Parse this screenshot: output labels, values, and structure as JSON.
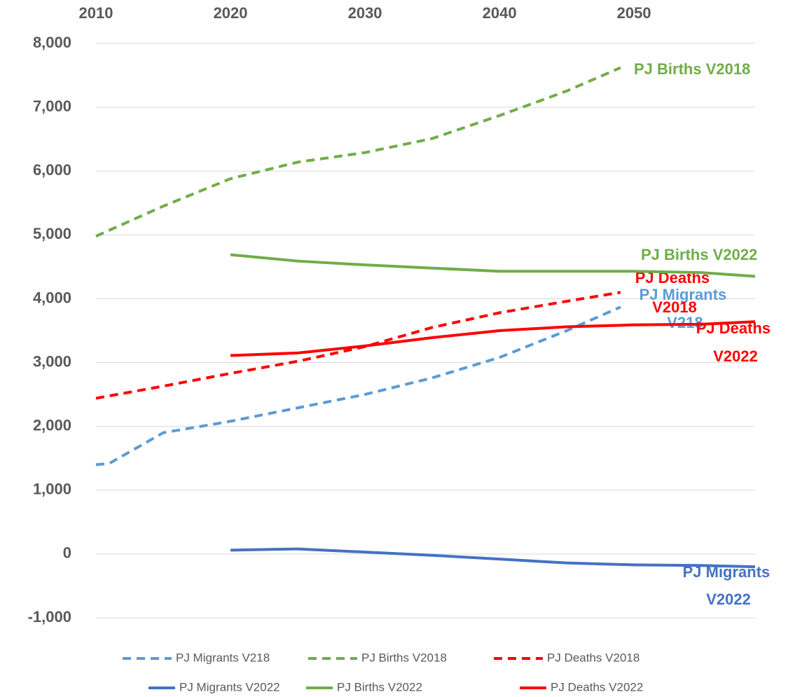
{
  "chart_data": {
    "type": "line",
    "series": [
      {
        "name": "PJ Migrants V218",
        "color": "#5b9bd5",
        "dashed": true,
        "x": [
          2010,
          2011,
          2015,
          2020,
          2025,
          2030,
          2035,
          2040,
          2045,
          2049
        ],
        "values": [
          1400,
          1420,
          1900,
          2080,
          2290,
          2500,
          2760,
          3080,
          3500,
          3870
        ]
      },
      {
        "name": "PJ Births V2018",
        "color": "#70ad47",
        "dashed": true,
        "x": [
          2010,
          2015,
          2020,
          2025,
          2030,
          2035,
          2040,
          2045,
          2049
        ],
        "values": [
          4980,
          5450,
          5880,
          6140,
          6290,
          6510,
          6870,
          7255,
          7620
        ]
      },
      {
        "name": "PJ Deaths V2018",
        "color": "#ff0000",
        "dashed": true,
        "x": [
          2010,
          2015,
          2020,
          2025,
          2030,
          2035,
          2040,
          2045,
          2049
        ],
        "values": [
          2440,
          2630,
          2830,
          3020,
          3250,
          3550,
          3780,
          3960,
          4100
        ]
      },
      {
        "name": "PJ Migrants V2022",
        "color": "#4472c4",
        "dashed": false,
        "x": [
          2020,
          2025,
          2030,
          2035,
          2040,
          2045,
          2050,
          2055,
          2059
        ],
        "values": [
          60,
          80,
          30,
          -20,
          -80,
          -140,
          -170,
          -180,
          -200
        ]
      },
      {
        "name": "PJ Births V2022",
        "color": "#70ad47",
        "dashed": false,
        "x": [
          2020,
          2025,
          2030,
          2035,
          2040,
          2045,
          2050,
          2055,
          2059
        ],
        "values": [
          4690,
          4590,
          4530,
          4480,
          4430,
          4430,
          4430,
          4410,
          4350
        ]
      },
      {
        "name": "PJ Deaths V2022",
        "color": "#ff0000",
        "dashed": false,
        "x": [
          2020,
          2025,
          2030,
          2035,
          2040,
          2045,
          2050,
          2055,
          2059
        ],
        "values": [
          3110,
          3150,
          3260,
          3390,
          3500,
          3560,
          3590,
          3600,
          3640
        ]
      }
    ],
    "xlim": [
      2010,
      2059
    ],
    "xticks": [
      2010,
      2020,
      2030,
      2040,
      2050
    ],
    "ylim": [
      -1000,
      8000
    ],
    "yticks": [
      {
        "value": -1000,
        "label": "-1,000"
      },
      0,
      {
        "value": 1000,
        "label": "1,000"
      },
      {
        "value": 2000,
        "label": "2,000"
      },
      {
        "value": 3000,
        "label": "3,000"
      },
      {
        "value": 4000,
        "label": "4,000"
      },
      {
        "value": 5000,
        "label": "5,000"
      },
      {
        "value": 6000,
        "label": "6,000"
      },
      {
        "value": 7000,
        "label": "7,000"
      },
      {
        "value": 8000,
        "label": "8,000"
      }
    ],
    "grid": true,
    "legend": "bottom"
  }
}
